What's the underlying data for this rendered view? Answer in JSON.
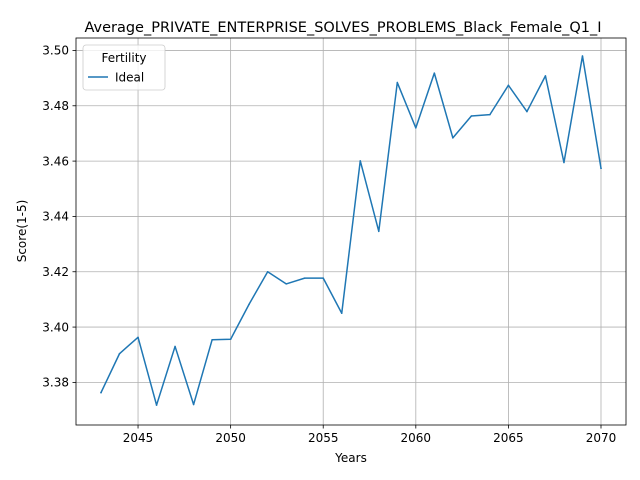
{
  "chart_data": {
    "type": "line",
    "title": "Average_PRIVATE_ENTERPRISE_SOLVES_PROBLEMS_Black_Female_Q1_I",
    "xlabel": "Years",
    "ylabel": "Score(1-5)",
    "xlim": [
      2041.65,
      2071.35
    ],
    "ylim": [
      3.3646,
      3.5045
    ],
    "xticks": [
      2045,
      2050,
      2055,
      2060,
      2065,
      2070
    ],
    "xtick_labels": [
      "2045",
      "2050",
      "2055",
      "2060",
      "2065",
      "2070"
    ],
    "yticks": [
      3.38,
      3.4,
      3.42,
      3.44,
      3.46,
      3.48,
      3.5
    ],
    "ytick_labels": [
      "3.38",
      "3.40",
      "3.42",
      "3.44",
      "3.46",
      "3.48",
      "3.50"
    ],
    "grid": true,
    "legend": {
      "title": "Fertility",
      "location": "top-left"
    },
    "series": [
      {
        "name": "Ideal",
        "color": "#1f77b4",
        "x": [
          2043,
          2044,
          2045,
          2046,
          2047,
          2048,
          2049,
          2050,
          2051,
          2052,
          2053,
          2054,
          2055,
          2056,
          2057,
          2058,
          2059,
          2060,
          2061,
          2062,
          2063,
          2064,
          2065,
          2066,
          2067,
          2068,
          2069,
          2070
        ],
        "y": [
          3.3763,
          3.3904,
          3.3963,
          3.3718,
          3.393,
          3.372,
          3.3954,
          3.3956,
          3.4083,
          3.42,
          3.4156,
          3.4177,
          3.4177,
          3.405,
          3.4601,
          3.4346,
          3.4884,
          3.472,
          3.4918,
          3.4684,
          3.4763,
          3.4768,
          3.4874,
          3.4779,
          3.4908,
          3.4595,
          3.498,
          3.4574
        ]
      }
    ]
  }
}
